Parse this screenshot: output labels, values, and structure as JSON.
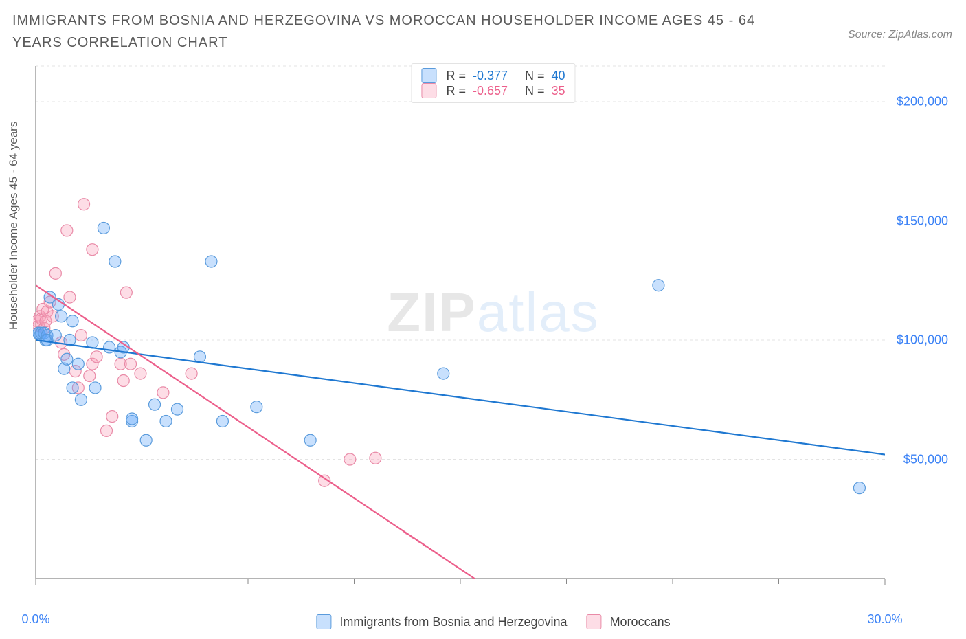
{
  "title": "IMMIGRANTS FROM BOSNIA AND HERZEGOVINA VS MOROCCAN HOUSEHOLDER INCOME AGES 45 - 64 YEARS CORRELATION CHART",
  "source": "Source: ZipAtlas.com",
  "ylabel": "Householder Income Ages 45 - 64 years",
  "watermark": {
    "part1": "ZIP",
    "part2": "atlas"
  },
  "chart": {
    "type": "scatter-with-regression",
    "background_color": "#ffffff",
    "grid_color": "#e3e3e3",
    "grid_dash": "4,4",
    "axis_color": "#888888",
    "xlim": [
      0,
      30
    ],
    "ylim": [
      0,
      215000
    ],
    "xticks": [
      0,
      30
    ],
    "xtick_labels": [
      "0.0%",
      "30.0%"
    ],
    "xtick_color": "#3b82f6",
    "yticks": [
      50000,
      100000,
      150000,
      200000
    ],
    "ytick_labels": [
      "$50,000",
      "$100,000",
      "$150,000",
      "$200,000"
    ],
    "ytick_color": "#3b82f6",
    "minor_xticks": [
      3.75,
      7.5,
      11.25,
      15,
      18.75,
      22.5,
      26.25
    ],
    "marker_radius": 8.5,
    "marker_stroke": 1.2,
    "line_width": 2.2,
    "series": [
      {
        "key": "bosnia",
        "label": "Immigrants from Bosnia and Herzegovina",
        "color_fill": "rgba(96,165,250,0.35)",
        "color_stroke": "#5a9bdc",
        "line_color": "#1f78d1",
        "R": "-0.377",
        "N": "40",
        "regression": {
          "x1": 0,
          "y1": 100000,
          "x2": 30,
          "y2": 52000
        },
        "points": [
          [
            0.1,
            103000
          ],
          [
            0.1,
            103000
          ],
          [
            0.15,
            102000
          ],
          [
            0.2,
            103000
          ],
          [
            0.3,
            103000
          ],
          [
            0.35,
            100000
          ],
          [
            0.4,
            102000
          ],
          [
            0.4,
            100000
          ],
          [
            0.5,
            118000
          ],
          [
            0.7,
            102000
          ],
          [
            0.8,
            115000
          ],
          [
            0.9,
            110000
          ],
          [
            1.0,
            88000
          ],
          [
            1.1,
            92000
          ],
          [
            1.2,
            100000
          ],
          [
            1.3,
            108000
          ],
          [
            1.3,
            80000
          ],
          [
            1.5,
            90000
          ],
          [
            1.6,
            75000
          ],
          [
            2.0,
            99000
          ],
          [
            2.1,
            80000
          ],
          [
            2.4,
            147000
          ],
          [
            2.6,
            97000
          ],
          [
            2.8,
            133000
          ],
          [
            3.0,
            95000
          ],
          [
            3.1,
            97000
          ],
          [
            3.4,
            66000
          ],
          [
            3.4,
            67000
          ],
          [
            3.9,
            58000
          ],
          [
            4.2,
            73000
          ],
          [
            4.6,
            66000
          ],
          [
            5.0,
            71000
          ],
          [
            5.8,
            93000
          ],
          [
            6.2,
            133000
          ],
          [
            6.6,
            66000
          ],
          [
            7.8,
            72000
          ],
          [
            9.7,
            58000
          ],
          [
            14.4,
            86000
          ],
          [
            22.0,
            123000
          ],
          [
            29.1,
            38000
          ]
        ]
      },
      {
        "key": "moroccan",
        "label": "Moroccans",
        "color_fill": "rgba(248,157,183,0.35)",
        "color_stroke": "#e98aa7",
        "line_color": "#ec5f8b",
        "R": "-0.657",
        "N": "35",
        "regression": {
          "x1": 0,
          "y1": 123000,
          "x2": 15.5,
          "y2": 0
        },
        "regression_extend": {
          "x1": 13,
          "y1": 19500,
          "x2": 15.5,
          "y2": 0,
          "dash": "6,5"
        },
        "points": [
          [
            0.05,
            108000
          ],
          [
            0.1,
            106000
          ],
          [
            0.15,
            110000
          ],
          [
            0.2,
            109000
          ],
          [
            0.25,
            113000
          ],
          [
            0.3,
            105000
          ],
          [
            0.35,
            108000
          ],
          [
            0.4,
            112000
          ],
          [
            0.5,
            116000
          ],
          [
            0.6,
            110000
          ],
          [
            0.7,
            128000
          ],
          [
            0.9,
            99000
          ],
          [
            1.0,
            94000
          ],
          [
            1.1,
            146000
          ],
          [
            1.2,
            118000
          ],
          [
            1.4,
            87000
          ],
          [
            1.5,
            80000
          ],
          [
            1.6,
            102000
          ],
          [
            1.7,
            157000
          ],
          [
            1.9,
            85000
          ],
          [
            2.0,
            90000
          ],
          [
            2.0,
            138000
          ],
          [
            2.15,
            93000
          ],
          [
            2.5,
            62000
          ],
          [
            2.7,
            68000
          ],
          [
            3.0,
            90000
          ],
          [
            3.1,
            83000
          ],
          [
            3.2,
            120000
          ],
          [
            3.35,
            90000
          ],
          [
            3.7,
            86000
          ],
          [
            4.5,
            78000
          ],
          [
            5.5,
            86000
          ],
          [
            10.2,
            41000
          ],
          [
            11.1,
            50000
          ],
          [
            12.0,
            50500
          ]
        ]
      }
    ]
  },
  "legend_stats_labels": {
    "R": "R =",
    "N": "N ="
  }
}
